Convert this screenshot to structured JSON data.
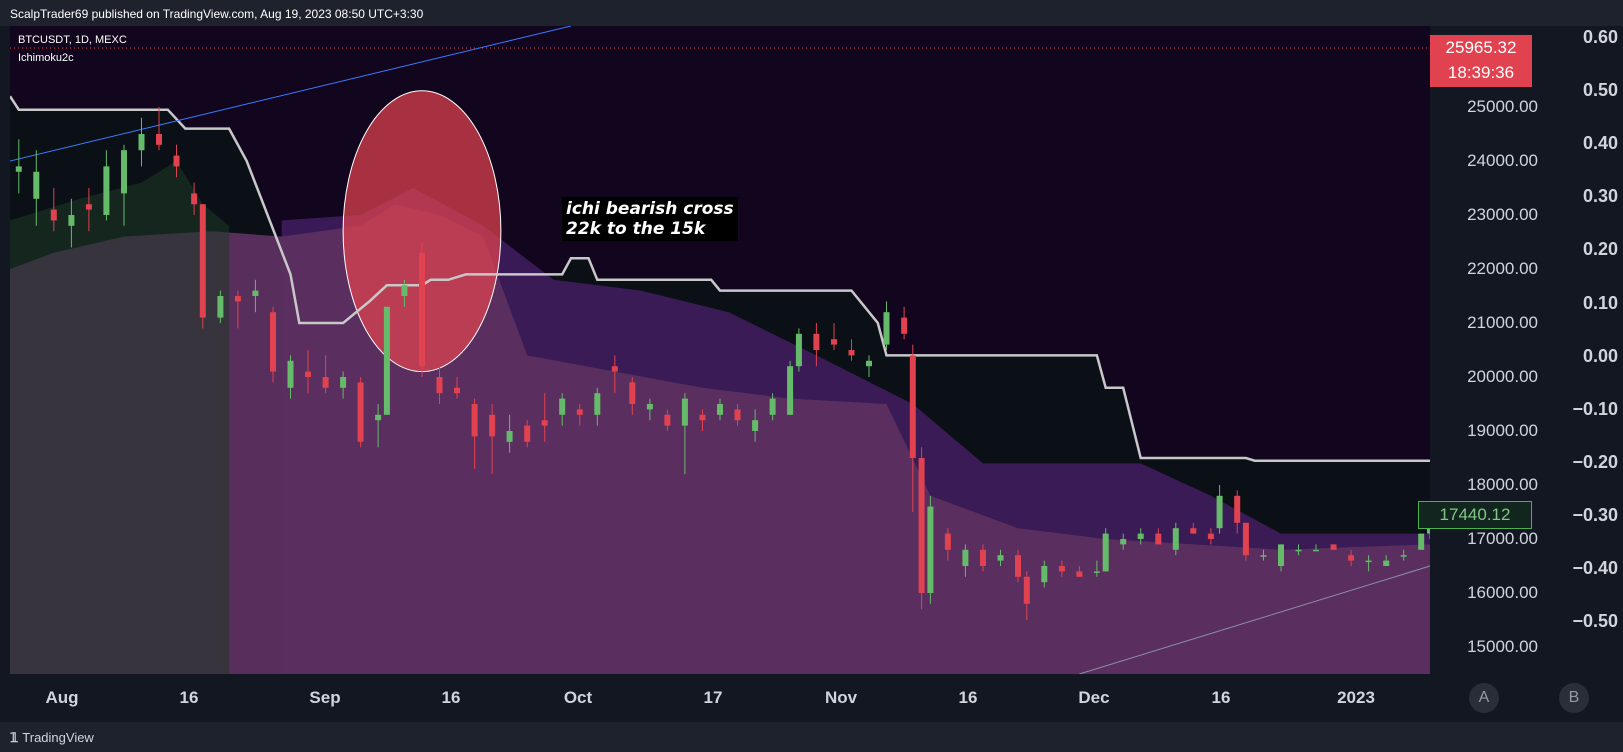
{
  "header": {
    "published_text": "ScalpTrader69 published on TradingView.com, Aug 19, 2023 08:50 UTC+3:30"
  },
  "legend": {
    "symbol": "BTCUSDT, 1D, MEXC",
    "indicator": "Ichimoku2c"
  },
  "annotation": {
    "text": "ichi bearish cross\n22k to the 15k"
  },
  "price_scale": {
    "labels": [
      "25000.00",
      "24000.00",
      "23000.00",
      "22000.00",
      "21000.00",
      "20000.00",
      "19000.00",
      "18000.00",
      "17000.00",
      "16000.00",
      "15000.00"
    ],
    "last_price": "25965.32",
    "countdown": "18:39:36",
    "current_value": "17440.12"
  },
  "indicator_scale": {
    "labels": [
      "0.60",
      "0.50",
      "0.40",
      "0.30",
      "0.20",
      "0.10",
      "0.00",
      "−0.10",
      "−0.20",
      "−0.30",
      "−0.40",
      "−0.50"
    ]
  },
  "time_axis": {
    "labels": [
      "Aug",
      "16",
      "Sep",
      "16",
      "Oct",
      "17",
      "Nov",
      "16",
      "Dec",
      "16",
      "2023"
    ]
  },
  "scale_buttons": {
    "a": "A",
    "b": "B"
  },
  "footer": {
    "logo_text": "TradingView"
  },
  "colors": {
    "up": "#66bb6a",
    "down": "#e0424f",
    "tenkan": "#c8c8c8",
    "trendline_upper": "#3d7bff",
    "trendline_lower": "#8e8fa8",
    "cloud_magenta": "#5c3060",
    "cloud_purple": "#3f1d5c",
    "background": "#12061f"
  },
  "chart_data": {
    "type": "candlestick",
    "symbol": "BTCUSDT",
    "interval": "1D",
    "exchange": "MEXC",
    "y_range": [
      14500,
      26500
    ],
    "x_range": [
      "2022-07-28",
      "2023-01-06"
    ],
    "candles": [
      {
        "date": "2022-07-29",
        "o": 23800,
        "h": 24400,
        "l": 23400,
        "c": 23900
      },
      {
        "date": "2022-07-31",
        "o": 23300,
        "h": 24200,
        "l": 22800,
        "c": 23800
      },
      {
        "date": "2022-08-02",
        "o": 23100,
        "h": 23500,
        "l": 22700,
        "c": 22900
      },
      {
        "date": "2022-08-04",
        "o": 22800,
        "h": 23300,
        "l": 22400,
        "c": 23000
      },
      {
        "date": "2022-08-06",
        "o": 23200,
        "h": 23500,
        "l": 22700,
        "c": 23100
      },
      {
        "date": "2022-08-08",
        "o": 23000,
        "h": 24200,
        "l": 22900,
        "c": 23900
      },
      {
        "date": "2022-08-10",
        "o": 23400,
        "h": 24300,
        "l": 22800,
        "c": 24200
      },
      {
        "date": "2022-08-12",
        "o": 24200,
        "h": 24800,
        "l": 23900,
        "c": 24500
      },
      {
        "date": "2022-08-14",
        "o": 24500,
        "h": 25000,
        "l": 24200,
        "c": 24300
      },
      {
        "date": "2022-08-16",
        "o": 24100,
        "h": 24300,
        "l": 23700,
        "c": 23900
      },
      {
        "date": "2022-08-18",
        "o": 23400,
        "h": 23600,
        "l": 23000,
        "c": 23200
      },
      {
        "date": "2022-08-19",
        "o": 23200,
        "h": 23200,
        "l": 20900,
        "c": 21100
      },
      {
        "date": "2022-08-21",
        "o": 21100,
        "h": 21600,
        "l": 21000,
        "c": 21500
      },
      {
        "date": "2022-08-23",
        "o": 21500,
        "h": 21600,
        "l": 20900,
        "c": 21400
      },
      {
        "date": "2022-08-25",
        "o": 21500,
        "h": 21800,
        "l": 21200,
        "c": 21600
      },
      {
        "date": "2022-08-27",
        "o": 21200,
        "h": 21300,
        "l": 19900,
        "c": 20100
      },
      {
        "date": "2022-08-29",
        "o": 19800,
        "h": 20400,
        "l": 19600,
        "c": 20300
      },
      {
        "date": "2022-08-31",
        "o": 20100,
        "h": 20500,
        "l": 19700,
        "c": 20000
      },
      {
        "date": "2022-09-02",
        "o": 20000,
        "h": 20400,
        "l": 19700,
        "c": 19800
      },
      {
        "date": "2022-09-04",
        "o": 19800,
        "h": 20100,
        "l": 19600,
        "c": 20000
      },
      {
        "date": "2022-09-06",
        "o": 19900,
        "h": 20000,
        "l": 18700,
        "c": 18800
      },
      {
        "date": "2022-09-08",
        "o": 19200,
        "h": 19500,
        "l": 18700,
        "c": 19300
      },
      {
        "date": "2022-09-09",
        "o": 19300,
        "h": 21300,
        "l": 19300,
        "c": 21300
      },
      {
        "date": "2022-09-11",
        "o": 21500,
        "h": 21800,
        "l": 21300,
        "c": 21700
      },
      {
        "date": "2022-09-13",
        "o": 22300,
        "h": 22500,
        "l": 20000,
        "c": 20200
      },
      {
        "date": "2022-09-15",
        "o": 20000,
        "h": 20200,
        "l": 19500,
        "c": 19700
      },
      {
        "date": "2022-09-17",
        "o": 19800,
        "h": 20000,
        "l": 19600,
        "c": 19700
      },
      {
        "date": "2022-09-19",
        "o": 19500,
        "h": 19600,
        "l": 18300,
        "c": 18900
      },
      {
        "date": "2022-09-21",
        "o": 19300,
        "h": 19500,
        "l": 18200,
        "c": 18900
      },
      {
        "date": "2022-09-23",
        "o": 18800,
        "h": 19300,
        "l": 18600,
        "c": 19000
      },
      {
        "date": "2022-09-25",
        "o": 19100,
        "h": 19200,
        "l": 18700,
        "c": 18800
      },
      {
        "date": "2022-09-27",
        "o": 19200,
        "h": 19700,
        "l": 18800,
        "c": 19100
      },
      {
        "date": "2022-09-29",
        "o": 19300,
        "h": 19700,
        "l": 19100,
        "c": 19600
      },
      {
        "date": "2022-10-01",
        "o": 19400,
        "h": 19500,
        "l": 19100,
        "c": 19300
      },
      {
        "date": "2022-10-03",
        "o": 19300,
        "h": 19800,
        "l": 19100,
        "c": 19700
      },
      {
        "date": "2022-10-05",
        "o": 20200,
        "h": 20400,
        "l": 19700,
        "c": 20100
      },
      {
        "date": "2022-10-07",
        "o": 19900,
        "h": 20000,
        "l": 19300,
        "c": 19500
      },
      {
        "date": "2022-10-09",
        "o": 19400,
        "h": 19600,
        "l": 19200,
        "c": 19500
      },
      {
        "date": "2022-10-11",
        "o": 19300,
        "h": 19400,
        "l": 19000,
        "c": 19100
      },
      {
        "date": "2022-10-13",
        "o": 19100,
        "h": 19700,
        "l": 18200,
        "c": 19600
      },
      {
        "date": "2022-10-15",
        "o": 19300,
        "h": 19400,
        "l": 19000,
        "c": 19200
      },
      {
        "date": "2022-10-17",
        "o": 19300,
        "h": 19600,
        "l": 19200,
        "c": 19500
      },
      {
        "date": "2022-10-19",
        "o": 19400,
        "h": 19500,
        "l": 19100,
        "c": 19200
      },
      {
        "date": "2022-10-21",
        "o": 19000,
        "h": 19400,
        "l": 18800,
        "c": 19200
      },
      {
        "date": "2022-10-23",
        "o": 19300,
        "h": 19700,
        "l": 19200,
        "c": 19600
      },
      {
        "date": "2022-10-25",
        "o": 19300,
        "h": 20300,
        "l": 19300,
        "c": 20200
      },
      {
        "date": "2022-10-26",
        "o": 20200,
        "h": 20900,
        "l": 20100,
        "c": 20800
      },
      {
        "date": "2022-10-28",
        "o": 20800,
        "h": 21000,
        "l": 20200,
        "c": 20500
      },
      {
        "date": "2022-10-30",
        "o": 20700,
        "h": 21000,
        "l": 20500,
        "c": 20600
      },
      {
        "date": "2022-11-01",
        "o": 20500,
        "h": 20700,
        "l": 20300,
        "c": 20400
      },
      {
        "date": "2022-11-03",
        "o": 20200,
        "h": 20400,
        "l": 20000,
        "c": 20300
      },
      {
        "date": "2022-11-05",
        "o": 20600,
        "h": 21400,
        "l": 20500,
        "c": 21200
      },
      {
        "date": "2022-11-07",
        "o": 21100,
        "h": 21300,
        "l": 20700,
        "c": 20800
      },
      {
        "date": "2022-11-08",
        "o": 20400,
        "h": 20600,
        "l": 17500,
        "c": 18500
      },
      {
        "date": "2022-11-09",
        "o": 18500,
        "h": 18700,
        "l": 15700,
        "c": 16000
      },
      {
        "date": "2022-11-10",
        "o": 16000,
        "h": 17800,
        "l": 15800,
        "c": 17600
      },
      {
        "date": "2022-11-12",
        "o": 17100,
        "h": 17200,
        "l": 16600,
        "c": 16800
      },
      {
        "date": "2022-11-14",
        "o": 16500,
        "h": 16900,
        "l": 16300,
        "c": 16800
      },
      {
        "date": "2022-11-16",
        "o": 16800,
        "h": 16900,
        "l": 16400,
        "c": 16500
      },
      {
        "date": "2022-11-18",
        "o": 16600,
        "h": 16800,
        "l": 16500,
        "c": 16700
      },
      {
        "date": "2022-11-20",
        "o": 16700,
        "h": 16800,
        "l": 16200,
        "c": 16300
      },
      {
        "date": "2022-11-21",
        "o": 16300,
        "h": 16400,
        "l": 15500,
        "c": 15800
      },
      {
        "date": "2022-11-23",
        "o": 16200,
        "h": 16600,
        "l": 16100,
        "c": 16500
      },
      {
        "date": "2022-11-25",
        "o": 16500,
        "h": 16600,
        "l": 16300,
        "c": 16400
      },
      {
        "date": "2022-11-27",
        "o": 16400,
        "h": 16500,
        "l": 16300,
        "c": 16300
      },
      {
        "date": "2022-11-29",
        "o": 16400,
        "h": 16600,
        "l": 16300,
        "c": 16400
      },
      {
        "date": "2022-11-30",
        "o": 16400,
        "h": 17200,
        "l": 16400,
        "c": 17100
      },
      {
        "date": "2022-12-02",
        "o": 16900,
        "h": 17100,
        "l": 16800,
        "c": 17000
      },
      {
        "date": "2022-12-04",
        "o": 17000,
        "h": 17200,
        "l": 16900,
        "c": 17100
      },
      {
        "date": "2022-12-06",
        "o": 17100,
        "h": 17200,
        "l": 16900,
        "c": 16900
      },
      {
        "date": "2022-12-08",
        "o": 16800,
        "h": 17300,
        "l": 16700,
        "c": 17200
      },
      {
        "date": "2022-12-10",
        "o": 17200,
        "h": 17300,
        "l": 17100,
        "c": 17100
      },
      {
        "date": "2022-12-12",
        "o": 17100,
        "h": 17200,
        "l": 16900,
        "c": 17000
      },
      {
        "date": "2022-12-13",
        "o": 17200,
        "h": 18000,
        "l": 17100,
        "c": 17800
      },
      {
        "date": "2022-12-15",
        "o": 17800,
        "h": 17900,
        "l": 17100,
        "c": 17300
      },
      {
        "date": "2022-12-16",
        "o": 17300,
        "h": 17300,
        "l": 16600,
        "c": 16700
      },
      {
        "date": "2022-12-18",
        "o": 16700,
        "h": 16800,
        "l": 16600,
        "c": 16700
      },
      {
        "date": "2022-12-20",
        "o": 16500,
        "h": 16900,
        "l": 16400,
        "c": 16900
      },
      {
        "date": "2022-12-22",
        "o": 16800,
        "h": 16900,
        "l": 16700,
        "c": 16800
      },
      {
        "date": "2022-12-24",
        "o": 16800,
        "h": 16900,
        "l": 16800,
        "c": 16800
      },
      {
        "date": "2022-12-26",
        "o": 16900,
        "h": 16900,
        "l": 16800,
        "c": 16800
      },
      {
        "date": "2022-12-28",
        "o": 16700,
        "h": 16800,
        "l": 16500,
        "c": 16600
      },
      {
        "date": "2022-12-30",
        "o": 16600,
        "h": 16700,
        "l": 16400,
        "c": 16600
      },
      {
        "date": "2023-01-01",
        "o": 16500,
        "h": 16700,
        "l": 16500,
        "c": 16600
      },
      {
        "date": "2023-01-03",
        "o": 16700,
        "h": 16800,
        "l": 16600,
        "c": 16700
      },
      {
        "date": "2023-01-05",
        "o": 16800,
        "h": 17100,
        "l": 16800,
        "c": 17100
      },
      {
        "date": "2023-01-06",
        "o": 17100,
        "h": 17500,
        "l": 17000,
        "c": 17400
      }
    ],
    "tenkan_line": [
      {
        "date": "2022-07-28",
        "v": 25200
      },
      {
        "date": "2022-07-29",
        "v": 24950
      },
      {
        "date": "2022-08-15",
        "v": 24950
      },
      {
        "date": "2022-08-17",
        "v": 24600
      },
      {
        "date": "2022-08-22",
        "v": 24600
      },
      {
        "date": "2022-08-24",
        "v": 24000
      },
      {
        "date": "2022-08-29",
        "v": 21900
      },
      {
        "date": "2022-08-30",
        "v": 21000
      },
      {
        "date": "2022-09-04",
        "v": 21000
      },
      {
        "date": "2022-09-07",
        "v": 21400
      },
      {
        "date": "2022-09-09",
        "v": 21700
      },
      {
        "date": "2022-09-13",
        "v": 21700
      },
      {
        "date": "2022-09-14",
        "v": 21800
      },
      {
        "date": "2022-09-16",
        "v": 21800
      },
      {
        "date": "2022-09-18",
        "v": 21900
      },
      {
        "date": "2022-09-29",
        "v": 21900
      },
      {
        "date": "2022-09-30",
        "v": 22200
      },
      {
        "date": "2022-10-02",
        "v": 22200
      },
      {
        "date": "2022-10-03",
        "v": 21800
      },
      {
        "date": "2022-10-16",
        "v": 21800
      },
      {
        "date": "2022-10-17",
        "v": 21600
      },
      {
        "date": "2022-10-25",
        "v": 21600
      },
      {
        "date": "2022-11-01",
        "v": 21600
      },
      {
        "date": "2022-11-04",
        "v": 21000
      },
      {
        "date": "2022-11-05",
        "v": 20400
      },
      {
        "date": "2022-11-29",
        "v": 20400
      },
      {
        "date": "2022-11-30",
        "v": 19800
      },
      {
        "date": "2022-12-02",
        "v": 19800
      },
      {
        "date": "2022-12-04",
        "v": 18500
      },
      {
        "date": "2022-12-16",
        "v": 18500
      },
      {
        "date": "2022-12-17",
        "v": 18450
      },
      {
        "date": "2023-01-06",
        "v": 18450
      }
    ],
    "cloud_magenta_top": [
      {
        "date": "2022-07-28",
        "v": 22000
      },
      {
        "date": "2022-08-02",
        "v": 22300
      },
      {
        "date": "2022-08-10",
        "v": 22600
      },
      {
        "date": "2022-08-20",
        "v": 22700
      },
      {
        "date": "2022-08-28",
        "v": 22600
      },
      {
        "date": "2022-09-06",
        "v": 22800
      },
      {
        "date": "2022-09-10",
        "v": 23200
      },
      {
        "date": "2022-09-15",
        "v": 23000
      },
      {
        "date": "2022-09-20",
        "v": 22600
      },
      {
        "date": "2022-09-25",
        "v": 20400
      },
      {
        "date": "2022-10-05",
        "v": 20100
      },
      {
        "date": "2022-10-15",
        "v": 19800
      },
      {
        "date": "2022-10-25",
        "v": 19600
      },
      {
        "date": "2022-11-05",
        "v": 19500
      },
      {
        "date": "2022-11-10",
        "v": 17800
      },
      {
        "date": "2022-11-20",
        "v": 17200
      },
      {
        "date": "2022-11-30",
        "v": 17000
      },
      {
        "date": "2022-12-10",
        "v": 16900
      },
      {
        "date": "2022-12-20",
        "v": 16800
      },
      {
        "date": "2023-01-06",
        "v": 16900
      }
    ],
    "cloud_purple_top": [
      {
        "date": "2022-08-28",
        "v": 22900
      },
      {
        "date": "2022-09-06",
        "v": 23000
      },
      {
        "date": "2022-09-12",
        "v": 23500
      },
      {
        "date": "2022-09-20",
        "v": 22800
      },
      {
        "date": "2022-09-28",
        "v": 21800
      },
      {
        "date": "2022-10-08",
        "v": 21600
      },
      {
        "date": "2022-10-18",
        "v": 21200
      },
      {
        "date": "2022-10-28",
        "v": 20400
      },
      {
        "date": "2022-11-08",
        "v": 19500
      },
      {
        "date": "2022-11-16",
        "v": 18400
      },
      {
        "date": "2022-11-25",
        "v": 18400
      },
      {
        "date": "2022-12-04",
        "v": 18400
      },
      {
        "date": "2022-12-12",
        "v": 17800
      },
      {
        "date": "2022-12-20",
        "v": 17100
      },
      {
        "date": "2023-01-06",
        "v": 17100
      }
    ],
    "trendline_upper": [
      {
        "date": "2022-07-28",
        "v": 24000
      },
      {
        "date": "2022-09-30",
        "v": 26500
      }
    ],
    "trendline_lower": [
      {
        "date": "2022-11-27",
        "v": 14500
      },
      {
        "date": "2023-01-06",
        "v": 16500
      }
    ],
    "highlight_ellipse": {
      "date": "2022-09-13",
      "v": 22700,
      "date_radius_days": 9,
      "v_radius": 2600
    },
    "price_ticks": [
      25000,
      24000,
      23000,
      22000,
      21000,
      20000,
      19000,
      18000,
      17000,
      16000,
      15000
    ],
    "indicator_ticks": [
      0.6,
      0.5,
      0.4,
      0.3,
      0.2,
      0.1,
      0.0,
      -0.1,
      -0.2,
      -0.3,
      -0.4,
      -0.5
    ]
  }
}
